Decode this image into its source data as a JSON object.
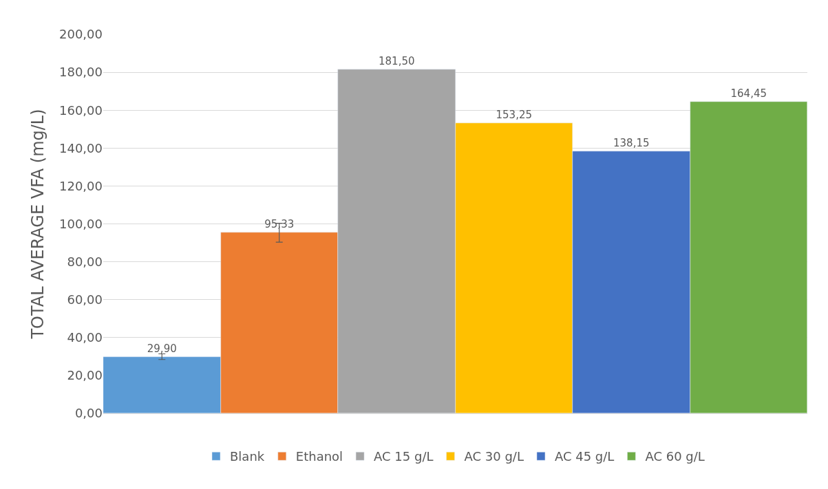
{
  "chart_data": {
    "type": "bar",
    "ylabel": "TOTAL AVERAGE VFA (mg/L)",
    "categories": [
      null
    ],
    "series": [
      {
        "name": "Blank",
        "color": "#5b9bd5",
        "values": [
          29.9
        ],
        "errors": [
          1.5
        ],
        "value_labels": [
          "29,90"
        ]
      },
      {
        "name": "Ethanol",
        "color": "#ed7d31",
        "values": [
          95.33
        ],
        "errors": [
          5
        ],
        "value_labels": [
          "95,33"
        ]
      },
      {
        "name": "AC 15 g/L",
        "color": "#a5a5a5",
        "values": [
          181.5
        ],
        "value_labels": [
          "181,50"
        ]
      },
      {
        "name": "AC 30 g/L",
        "color": "#ffc000",
        "values": [
          153.25
        ],
        "value_labels": [
          "153,25"
        ]
      },
      {
        "name": "AC 45 g/L",
        "color": "#4472c4",
        "values": [
          138.15
        ],
        "value_labels": [
          "138,15"
        ]
      },
      {
        "name": "AC 60 g/L",
        "color": "#70ad47",
        "values": [
          164.45
        ],
        "value_labels": [
          "164,45"
        ]
      }
    ],
    "ylim": [
      0,
      200
    ],
    "yticks": [
      {
        "value": 0,
        "label": "0,00"
      },
      {
        "value": 20,
        "label": "20,00"
      },
      {
        "value": 40,
        "label": "40,00"
      },
      {
        "value": 60,
        "label": "60,00"
      },
      {
        "value": 80,
        "label": "80,00"
      },
      {
        "value": 100,
        "label": "100,00"
      },
      {
        "value": 120,
        "label": "120,00"
      },
      {
        "value": 140,
        "label": "140,00"
      },
      {
        "value": 160,
        "label": "160,00"
      },
      {
        "value": 180,
        "label": "180,00"
      },
      {
        "value": 200,
        "label": "200,00"
      }
    ],
    "grid": "y",
    "legend": "bottom",
    "tick_labels": "y"
  }
}
